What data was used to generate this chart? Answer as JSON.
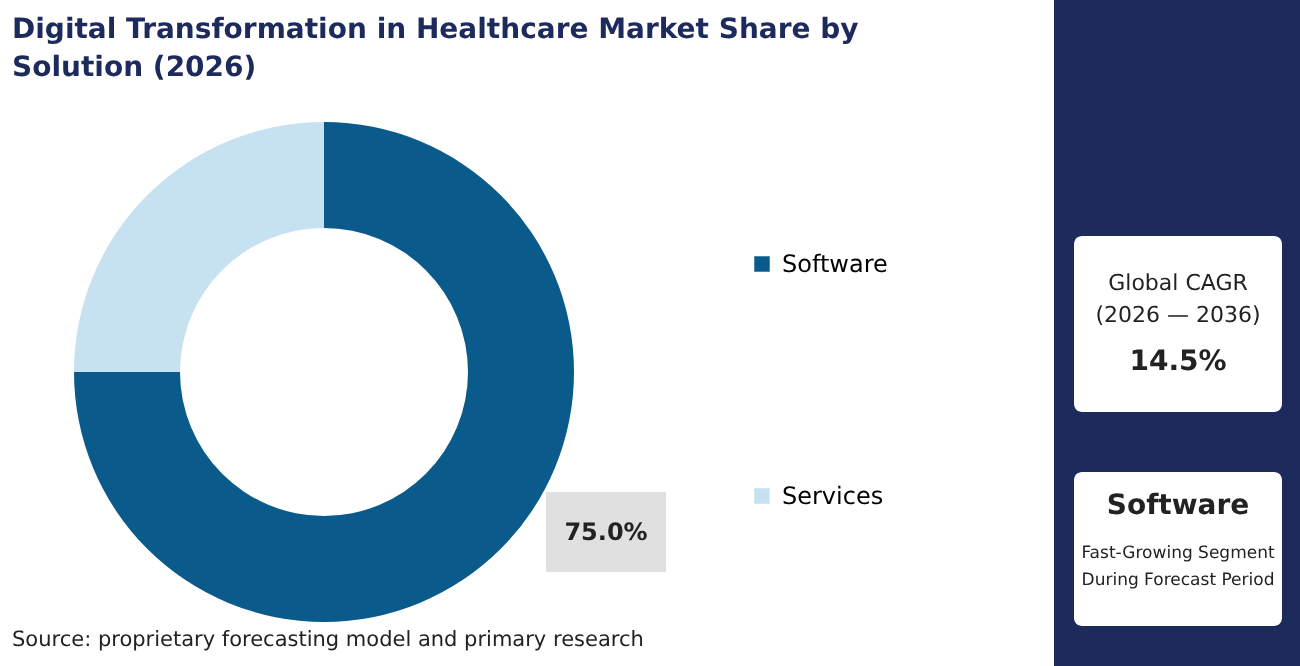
{
  "chart_data": {
    "type": "donut",
    "title": "Digital Transformation in Healthcare Market Share by Solution (2026)",
    "categories": [
      "Software",
      "Services"
    ],
    "values": [
      75,
      25
    ],
    "colors": [
      "#0b5a8c",
      "#c6e2f1"
    ],
    "value_labels": [
      "75.0%",
      null
    ],
    "legend": "right",
    "annotations": [
      "Global CAGR (2026 — 2036)",
      "14.5%",
      "Software",
      "Fast-Growing Segment During Forecast Period",
      "Source: proprietary forecasting model and primary research"
    ]
  }
}
